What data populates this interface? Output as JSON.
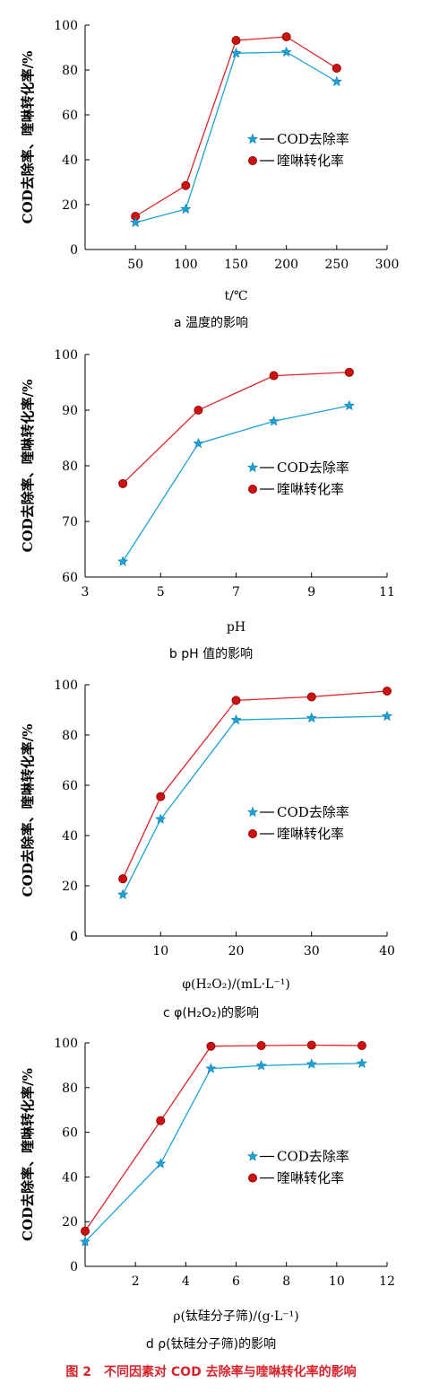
{
  "figure_caption": "图 2　不同因素对 COD 去除率与喹啉转化率的影响",
  "series_colors": {
    "cod": "#1aa3d9",
    "quinoline": "#e0242b",
    "quinoline_marker": "#cc1111"
  },
  "chart_data": [
    {
      "type": "line",
      "caption": "a 温度的影响",
      "xlabel": "t/℃",
      "ylabel": "COD去除率、喹啉转化率/%",
      "xlim": [
        0,
        300
      ],
      "ylim": [
        0,
        100
      ],
      "xticks": [
        50,
        100,
        150,
        200,
        250,
        300
      ],
      "yticks": [
        0,
        20,
        40,
        60,
        80,
        100
      ],
      "x": [
        50,
        100,
        150,
        200,
        250
      ],
      "series": [
        {
          "name": "COD去除率",
          "values": [
            12,
            18,
            87.5,
            88,
            74.8
          ],
          "marker": "star"
        },
        {
          "name": "喹啉转化率",
          "values": [
            14.8,
            28.5,
            93.2,
            94.8,
            80.8
          ],
          "marker": "circle"
        }
      ],
      "legend": "center-right"
    },
    {
      "type": "line",
      "caption": "b pH 值的影响",
      "xlabel": "pH",
      "ylabel": "COD去除率、喹啉转化率/%",
      "xlim": [
        3,
        11
      ],
      "ylim": [
        60,
        100
      ],
      "xticks": [
        3,
        5,
        7,
        9,
        11
      ],
      "yticks": [
        60,
        70,
        80,
        90,
        100
      ],
      "x": [
        4,
        6,
        8,
        10
      ],
      "series": [
        {
          "name": "COD去除率",
          "values": [
            62.8,
            84,
            88,
            90.8
          ],
          "marker": "star"
        },
        {
          "name": "喹啉转化率",
          "values": [
            76.8,
            90,
            96.2,
            96.8
          ],
          "marker": "circle"
        }
      ],
      "legend": "center-right"
    },
    {
      "type": "line",
      "caption": "c φ(H₂O₂)的影响",
      "xlabel": "φ(H₂O₂)/(mL·L⁻¹)",
      "ylabel": "COD去除率、喹啉转化率/%",
      "xlim": [
        0,
        40
      ],
      "ylim": [
        0,
        100
      ],
      "xticks": [
        10,
        20,
        30,
        40
      ],
      "yticks": [
        0,
        20,
        40,
        60,
        80,
        100
      ],
      "x": [
        5,
        10,
        20,
        30,
        40
      ],
      "series": [
        {
          "name": "COD去除率",
          "values": [
            16.5,
            46.5,
            86,
            86.8,
            87.5
          ],
          "marker": "star"
        },
        {
          "name": "喹啉转化率",
          "values": [
            22.8,
            55.5,
            93.8,
            95.2,
            97.5
          ],
          "marker": "circle"
        }
      ],
      "legend": "center-right"
    },
    {
      "type": "line",
      "caption": "d ρ(钛硅分子筛)的影响",
      "xlabel": "ρ(钛硅分子筛)/(g·L⁻¹)",
      "ylabel": "COD去除率、喹啉转化率/%",
      "xlim": [
        0,
        12
      ],
      "ylim": [
        0,
        100
      ],
      "xticks": [
        2,
        4,
        6,
        8,
        10,
        12
      ],
      "yticks": [
        0,
        20,
        40,
        60,
        80,
        100
      ],
      "x": [
        0,
        3,
        5,
        7,
        9,
        11
      ],
      "series": [
        {
          "name": "COD去除率",
          "values": [
            11,
            46,
            88.5,
            89.8,
            90.5,
            90.8
          ],
          "marker": "star"
        },
        {
          "name": "喹啉转化率",
          "values": [
            15.8,
            65.2,
            98.5,
            98.8,
            99,
            98.8
          ],
          "marker": "circle"
        }
      ],
      "legend": "center-right"
    }
  ]
}
